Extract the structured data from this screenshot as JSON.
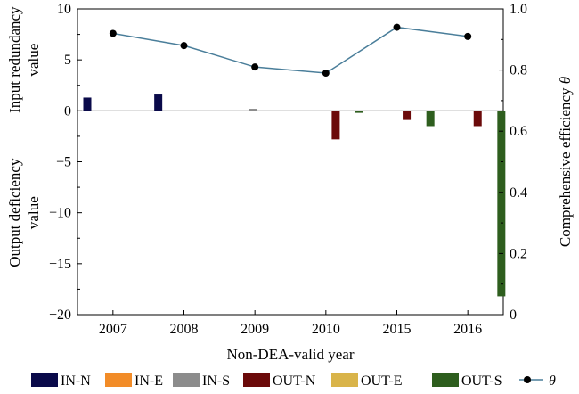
{
  "chart_data": {
    "type": "bar+line",
    "categories": [
      "2007",
      "2008",
      "2009",
      "2010",
      "2015",
      "2016"
    ],
    "xlabel": "Non-DEA-valid year",
    "ylabel_left_top": [
      "Input redundancy",
      "value"
    ],
    "ylabel_left_bottom": [
      "Output deficiency",
      "value"
    ],
    "ylabel_right": "Comprehensive efficiency θ",
    "ylim_left": [
      -20,
      10
    ],
    "yticks_left": [
      "10",
      "5",
      "0",
      "−5",
      "−10",
      "−15",
      "−20"
    ],
    "ylim_right": [
      0,
      1.0
    ],
    "yticks_right": [
      "1.0",
      "0.8",
      "0.6",
      "0.4",
      "0.2",
      "0"
    ],
    "bar_series": [
      {
        "name": "IN-N",
        "color": "#0a0a4a",
        "values": [
          1.3,
          1.6,
          0,
          0,
          0,
          0
        ]
      },
      {
        "name": "IN-E",
        "color": "#f28c28",
        "values": [
          0,
          0,
          0,
          0,
          0,
          0
        ]
      },
      {
        "name": "IN-S",
        "color": "#8c8c8c",
        "values": [
          0,
          0,
          0.2,
          0,
          0,
          0
        ]
      },
      {
        "name": "OUT-N",
        "color": "#6b0a0a",
        "values": [
          0,
          0,
          0,
          -2.8,
          -0.9,
          -1.5
        ]
      },
      {
        "name": "OUT-E",
        "color": "#d9b44a",
        "values": [
          0,
          0,
          0,
          0,
          0,
          0
        ]
      },
      {
        "name": "OUT-S",
        "color": "#2e5e1e",
        "values": [
          0,
          0,
          0,
          -0.2,
          -1.5,
          -18.2
        ]
      }
    ],
    "line_series": {
      "name": "θ",
      "color": "#4a7e9a",
      "values": [
        0.92,
        0.88,
        0.81,
        0.79,
        0.94,
        0.91
      ]
    },
    "legend_position": "bottom"
  }
}
